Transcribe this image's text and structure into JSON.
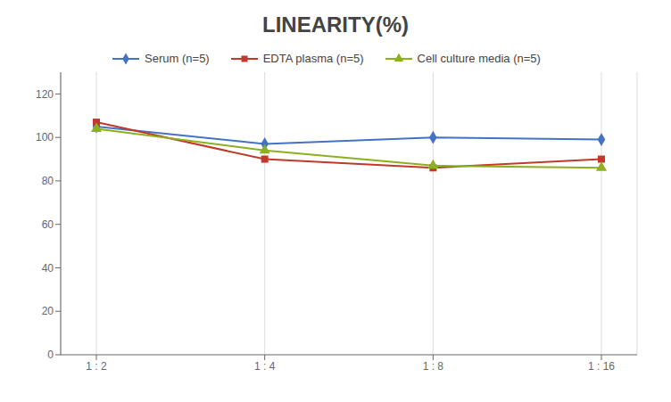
{
  "chart_data": {
    "type": "line",
    "title": "LINEARITY(%)",
    "categories": [
      "1 : 2",
      "1 : 4",
      "1 : 8",
      "1 : 16"
    ],
    "series": [
      {
        "name": "Serum (n=5)",
        "color": "#4472C4",
        "marker": "diamond",
        "values": [
          105,
          97,
          100,
          99
        ]
      },
      {
        "name": "EDTA plasma (n=5)",
        "color": "#C0392B",
        "marker": "square",
        "values": [
          107,
          90,
          86,
          90
        ]
      },
      {
        "name": "Cell culture media (n=5)",
        "color": "#8DB020",
        "marker": "triangle",
        "values": [
          104,
          94,
          87,
          86
        ]
      }
    ],
    "ylim": [
      0,
      130
    ],
    "yticks": [
      0,
      20,
      40,
      60,
      80,
      100,
      120
    ],
    "grid": true,
    "legend": "top"
  }
}
